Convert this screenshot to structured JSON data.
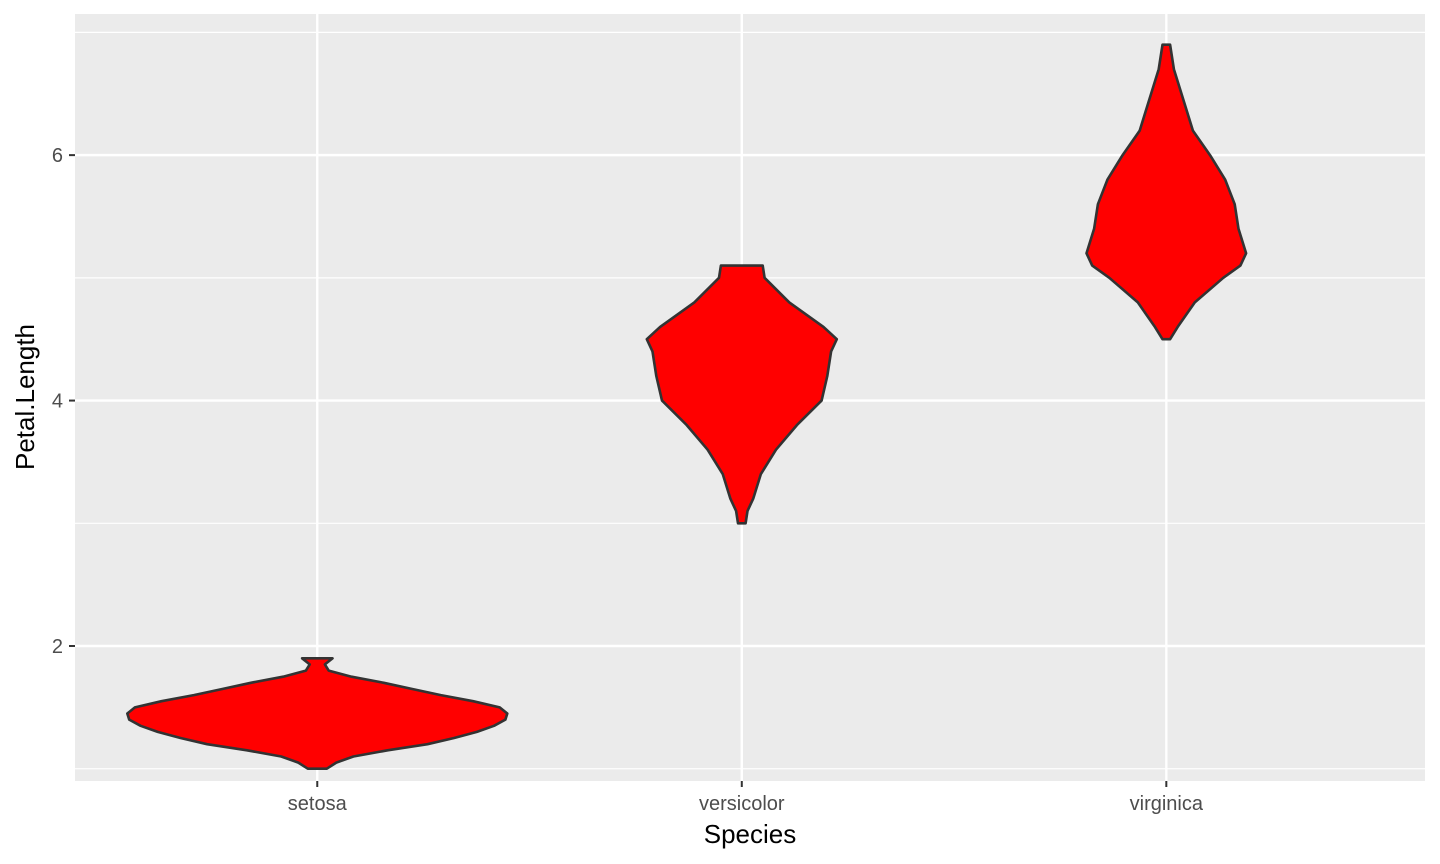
{
  "chart_data": {
    "type": "violin",
    "xlabel": "Species",
    "ylabel": "Petal.Length",
    "categories": [
      "setosa",
      "versicolor",
      "virginica"
    ],
    "ylim": [
      0.9,
      7.15
    ],
    "yticks": [
      2,
      4,
      6
    ],
    "y_minor_gridlines": [
      1,
      3,
      5,
      7
    ],
    "grid": true,
    "panel_background": "#ebebeb",
    "grid_color": "#ffffff",
    "fill_color": "#ff0000",
    "outline_color": "#333333",
    "violins": [
      {
        "category": "setosa",
        "min": 1.0,
        "max": 1.9,
        "density_profile": [
          [
            1.0,
            0.05
          ],
          [
            1.05,
            0.1
          ],
          [
            1.1,
            0.19
          ],
          [
            1.15,
            0.37
          ],
          [
            1.2,
            0.58
          ],
          [
            1.25,
            0.72
          ],
          [
            1.3,
            0.84
          ],
          [
            1.35,
            0.93
          ],
          [
            1.4,
            0.99
          ],
          [
            1.45,
            1.0
          ],
          [
            1.5,
            0.96
          ],
          [
            1.55,
            0.82
          ],
          [
            1.6,
            0.65
          ],
          [
            1.65,
            0.5
          ],
          [
            1.7,
            0.35
          ],
          [
            1.75,
            0.18
          ],
          [
            1.8,
            0.06
          ],
          [
            1.85,
            0.04
          ],
          [
            1.9,
            0.08
          ]
        ]
      },
      {
        "category": "versicolor",
        "min": 3.0,
        "max": 5.1,
        "density_profile": [
          [
            3.0,
            0.02
          ],
          [
            3.1,
            0.03
          ],
          [
            3.2,
            0.06
          ],
          [
            3.4,
            0.1
          ],
          [
            3.6,
            0.18
          ],
          [
            3.8,
            0.29
          ],
          [
            4.0,
            0.42
          ],
          [
            4.2,
            0.45
          ],
          [
            4.4,
            0.47
          ],
          [
            4.5,
            0.5
          ],
          [
            4.6,
            0.43
          ],
          [
            4.8,
            0.25
          ],
          [
            5.0,
            0.12
          ],
          [
            5.1,
            0.11
          ]
        ]
      },
      {
        "category": "virginica",
        "min": 4.5,
        "max": 6.9,
        "density_profile": [
          [
            4.5,
            0.02
          ],
          [
            4.6,
            0.06
          ],
          [
            4.8,
            0.15
          ],
          [
            5.0,
            0.3
          ],
          [
            5.1,
            0.39
          ],
          [
            5.2,
            0.42
          ],
          [
            5.4,
            0.38
          ],
          [
            5.6,
            0.36
          ],
          [
            5.8,
            0.31
          ],
          [
            6.0,
            0.23
          ],
          [
            6.2,
            0.14
          ],
          [
            6.4,
            0.1
          ],
          [
            6.6,
            0.06
          ],
          [
            6.7,
            0.04
          ],
          [
            6.8,
            0.03
          ],
          [
            6.9,
            0.02
          ]
        ]
      }
    ]
  }
}
